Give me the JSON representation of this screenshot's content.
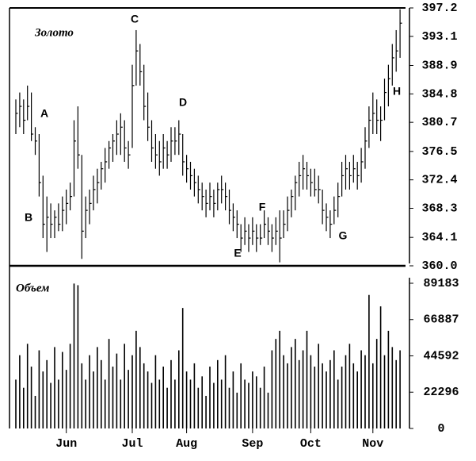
{
  "chart_data": [
    {
      "type": "hlc",
      "title": "Золото",
      "color": "#000000",
      "ylim": [
        360,
        397.2
      ],
      "yticks": [
        {
          "value": 360,
          "label": "360.0"
        },
        364.1,
        368.3,
        372.4,
        376.5,
        380.7,
        384.8,
        388.9,
        393.1,
        397.2
      ],
      "annotations": [
        "A",
        "B",
        "C",
        "D",
        "E",
        "F",
        "G",
        "H"
      ],
      "high": [
        384,
        385,
        384,
        386,
        385,
        380,
        379,
        373,
        370,
        369,
        368,
        369,
        370,
        371,
        372,
        381,
        383,
        376,
        370,
        371,
        373,
        374,
        375,
        377,
        378,
        379,
        381,
        382,
        381,
        378,
        389,
        394,
        392,
        389,
        385,
        381,
        379,
        378,
        379,
        378,
        380,
        380,
        381,
        379,
        376,
        375,
        374,
        373,
        372,
        371,
        372,
        371,
        372,
        373,
        372,
        371,
        369,
        368,
        366,
        367,
        366,
        367,
        366,
        366,
        368,
        367,
        366,
        367,
        368,
        368,
        370,
        371,
        373,
        375,
        376,
        375,
        374,
        374,
        373,
        371,
        369,
        368,
        370,
        372,
        375,
        376,
        375,
        376,
        375,
        377,
        380,
        383,
        385,
        384,
        383,
        387,
        389,
        392,
        394,
        397
      ],
      "low": [
        379,
        380,
        379,
        381,
        378,
        376,
        370,
        364,
        362,
        364,
        364,
        365,
        365,
        366,
        368,
        370,
        374,
        361,
        364,
        366,
        368,
        369,
        371,
        372,
        374,
        375,
        376,
        376,
        375,
        374,
        377,
        386,
        386,
        381,
        378,
        375,
        374,
        373,
        374,
        374,
        375,
        376,
        376,
        373,
        372,
        371,
        370,
        369,
        368,
        367,
        368,
        367,
        368,
        369,
        368,
        366,
        365,
        364,
        362,
        363,
        362,
        363,
        362,
        363,
        364,
        363,
        362,
        363,
        360.5,
        364,
        365,
        367,
        368,
        370,
        371,
        371,
        370,
        370,
        369,
        366,
        365,
        364,
        366,
        367,
        370,
        371,
        371,
        372,
        371,
        372,
        374,
        377,
        379,
        379,
        378,
        381,
        383,
        386,
        388,
        390
      ],
      "close": [
        382,
        383,
        381,
        383,
        379,
        378,
        372,
        366,
        367,
        366,
        367,
        366,
        368,
        369,
        370,
        378,
        376,
        365,
        368,
        369,
        371,
        372,
        374,
        375,
        377,
        378,
        379,
        380,
        377,
        376,
        386,
        391,
        388,
        383,
        380,
        377,
        376,
        375,
        377,
        376,
        378,
        378,
        379,
        375,
        374,
        373,
        372,
        371,
        370,
        369,
        370,
        369,
        371,
        371,
        370,
        368,
        367,
        366,
        364,
        365,
        364,
        365,
        364,
        364,
        366,
        365,
        364,
        365,
        364,
        366,
        368,
        370,
        372,
        373,
        374,
        373,
        372,
        371,
        371,
        368,
        367,
        366,
        368,
        370,
        373,
        374,
        373,
        374,
        373,
        375,
        378,
        381,
        382,
        381,
        381,
        385,
        387,
        390,
        391,
        395
      ]
    },
    {
      "type": "bar",
      "title": "Объем",
      "color": "#000000",
      "ylim": [
        0,
        89183
      ],
      "yticks": [
        0,
        22296,
        44592,
        66887,
        89183
      ],
      "categories": [
        null,
        null,
        null,
        null,
        null,
        null,
        null,
        null,
        null,
        null,
        null,
        null,
        null,
        "Jun",
        null,
        null,
        null,
        null,
        null,
        null,
        null,
        null,
        null,
        null,
        null,
        null,
        null,
        null,
        null,
        null,
        "Jul",
        null,
        null,
        null,
        null,
        null,
        null,
        null,
        null,
        null,
        null,
        null,
        null,
        null,
        "Aug",
        null,
        null,
        null,
        null,
        null,
        null,
        null,
        null,
        null,
        null,
        null,
        null,
        null,
        null,
        null,
        null,
        "Sep",
        null,
        null,
        null,
        null,
        null,
        null,
        null,
        null,
        null,
        null,
        null,
        null,
        null,
        null,
        "Oct",
        null,
        null,
        null,
        null,
        null,
        null,
        null,
        null,
        null,
        null,
        null,
        null,
        null,
        null,
        null,
        "Nov",
        null,
        null,
        null,
        null,
        null,
        null,
        null
      ],
      "values": [
        30000,
        45000,
        25000,
        52000,
        38000,
        20000,
        48000,
        35000,
        42000,
        28000,
        50000,
        30000,
        47000,
        36000,
        52000,
        89000,
        88000,
        40000,
        30000,
        45000,
        35000,
        50000,
        42000,
        30000,
        55000,
        38000,
        46000,
        30000,
        52000,
        36000,
        45000,
        60000,
        50000,
        40000,
        35000,
        28000,
        45000,
        30000,
        38000,
        25000,
        42000,
        30000,
        48000,
        74000,
        35000,
        30000,
        40000,
        25000,
        32000,
        20000,
        38000,
        28000,
        42000,
        30000,
        45000,
        25000,
        35000,
        22000,
        40000,
        30000,
        28000,
        35000,
        32000,
        25000,
        38000,
        22000,
        48000,
        55000,
        60000,
        45000,
        40000,
        50000,
        55000,
        42000,
        48000,
        60000,
        45000,
        38000,
        52000,
        40000,
        35000,
        42000,
        48000,
        30000,
        38000,
        45000,
        52000,
        40000,
        35000,
        48000,
        45000,
        82000,
        40000,
        55000,
        75000,
        45000,
        60000,
        50000,
        42000,
        48000
      ]
    }
  ]
}
